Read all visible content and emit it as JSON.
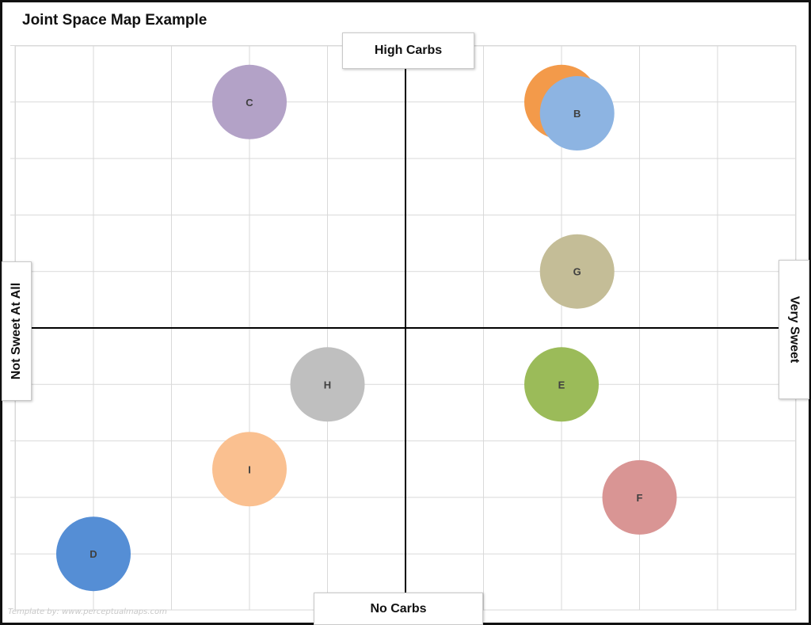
{
  "title": "Joint Space Map Example",
  "watermark": "Template by: www.perceptualmaps.com",
  "axes": {
    "top": "High Carbs",
    "bottom": "No Carbs",
    "left": "Not Sweet At All",
    "right": "Very Sweet"
  },
  "chart_data": {
    "type": "scatter",
    "title": "Joint Space Map Example",
    "xlim": [
      -5,
      5
    ],
    "ylim": [
      -5,
      5
    ],
    "grid": true,
    "x_axis_low_label": "Not Sweet At All",
    "x_axis_high_label": "Very Sweet",
    "y_axis_low_label": "No Carbs",
    "y_axis_high_label": "High Carbs",
    "points": [
      {
        "label": "A",
        "x": 2.0,
        "y": 4.0,
        "color": "#F39A4A"
      },
      {
        "label": "B",
        "x": 2.2,
        "y": 3.8,
        "color": "#8DB4E2"
      },
      {
        "label": "C",
        "x": -2.0,
        "y": 4.0,
        "color": "#B3A2C7"
      },
      {
        "label": "G",
        "x": 2.2,
        "y": 1.0,
        "color": "#C4BD97"
      },
      {
        "label": "H",
        "x": -1.0,
        "y": -1.0,
        "color": "#BFBFBF"
      },
      {
        "label": "E",
        "x": 2.0,
        "y": -1.0,
        "color": "#9BBB59"
      },
      {
        "label": "I",
        "x": -2.0,
        "y": -2.5,
        "color": "#FAC090"
      },
      {
        "label": "F",
        "x": 3.0,
        "y": -3.0,
        "color": "#D99594"
      },
      {
        "label": "D",
        "x": -4.0,
        "y": -4.0,
        "color": "#558ED5"
      }
    ]
  }
}
